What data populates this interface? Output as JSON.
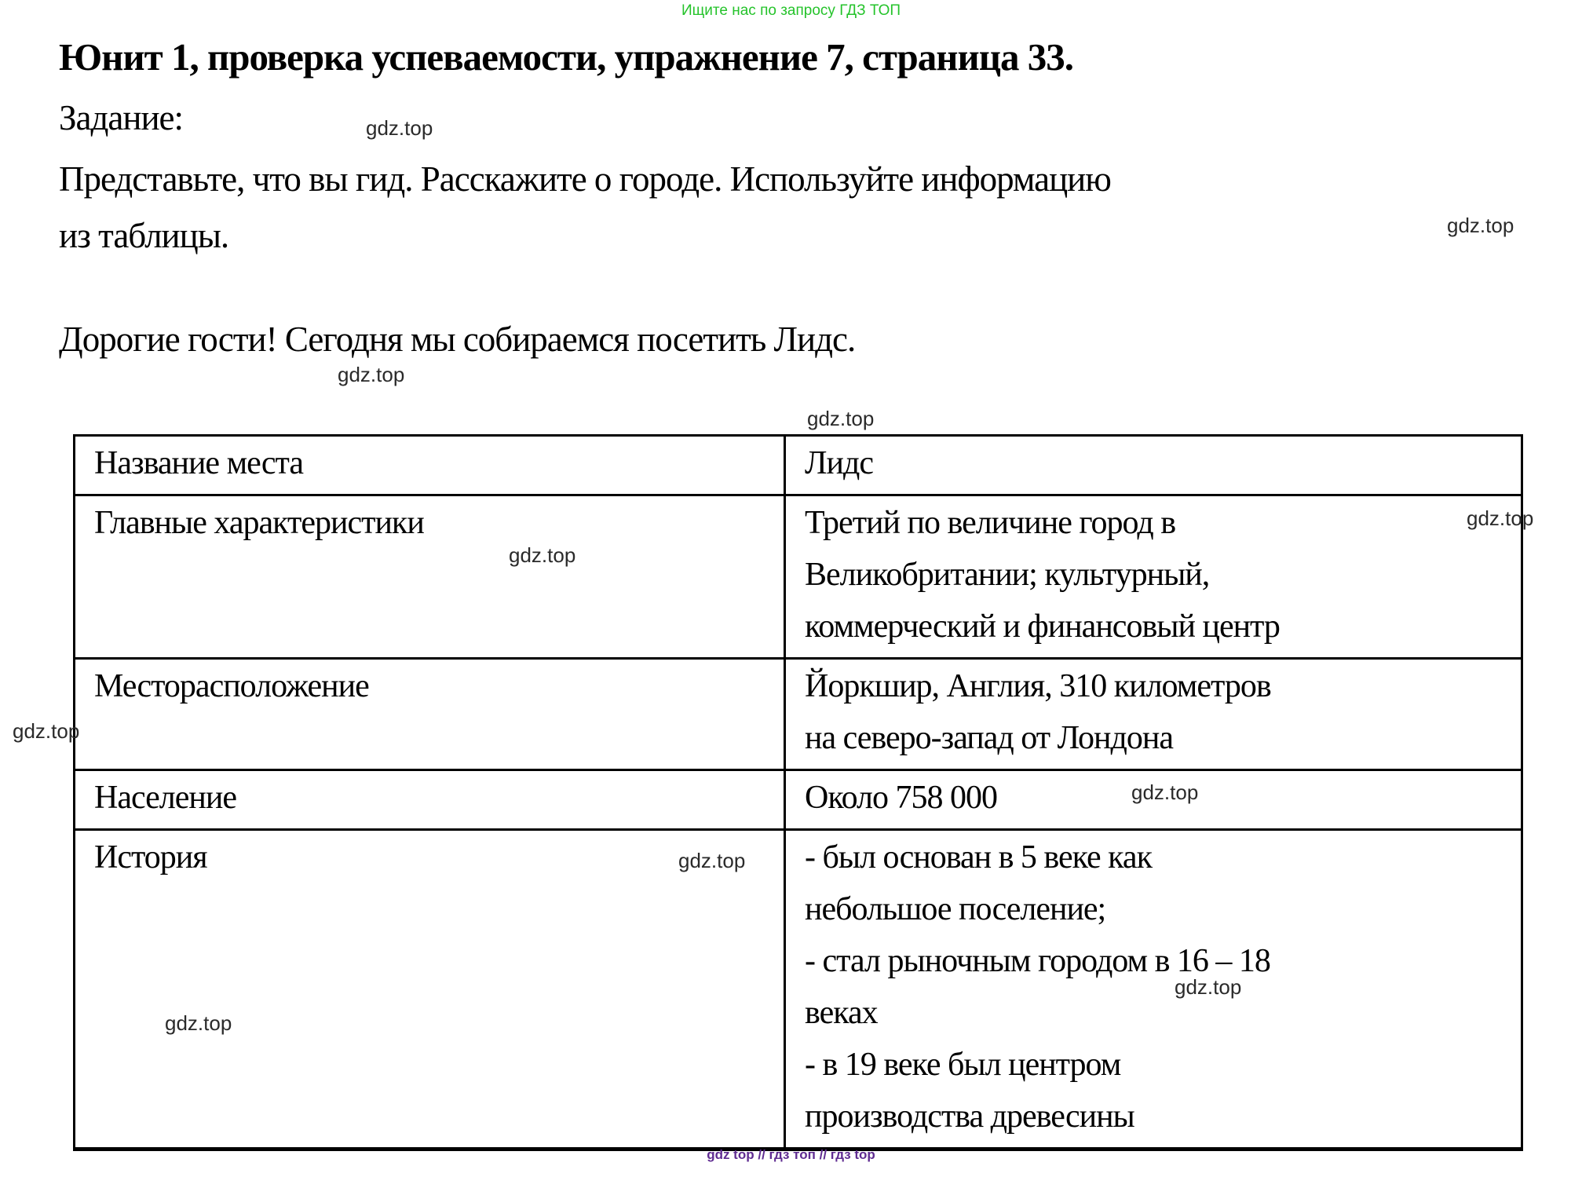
{
  "banner": {
    "text": "Ищите нас по запросу ГДЗ ТОП",
    "color": "#25c32b"
  },
  "heading": {
    "text": "Юнит 1, проверка успеваемости, упражнение 7, страница 33."
  },
  "task": {
    "label": "Задание:",
    "body": "Представьте, что вы гид. Расскажите о городе. Используйте информацию\nиз таблицы."
  },
  "answer": {
    "intro": "Дорогие гости! Сегодня мы собираемся посетить Лидс."
  },
  "table": {
    "rows": [
      {
        "label": "Название места",
        "value": "Лидс"
      },
      {
        "label": "Главные характеристики",
        "value": "Третий по величине город в\nВеликобритании; культурный,\nкоммерческий и финансовый центр"
      },
      {
        "label": "Месторасположение",
        "value": "Йоркшир, Англия, 310 километров\nна северо-запад от Лондона"
      },
      {
        "label": "Население",
        "value": "Около 758 000"
      },
      {
        "label": "История",
        "value": "- был основан в 5 веке как\nнебольшое поселение;\n- стал рыночным городом в 16 – 18\nвеках\n- в 19 веке был центром\nпроизводства древесины"
      }
    ]
  },
  "watermark": {
    "text": "gdz.top",
    "color": "#2a2a2a"
  },
  "footer": {
    "text": "gdz top // гдз топ // гдз top",
    "color": "#5f2c91"
  }
}
